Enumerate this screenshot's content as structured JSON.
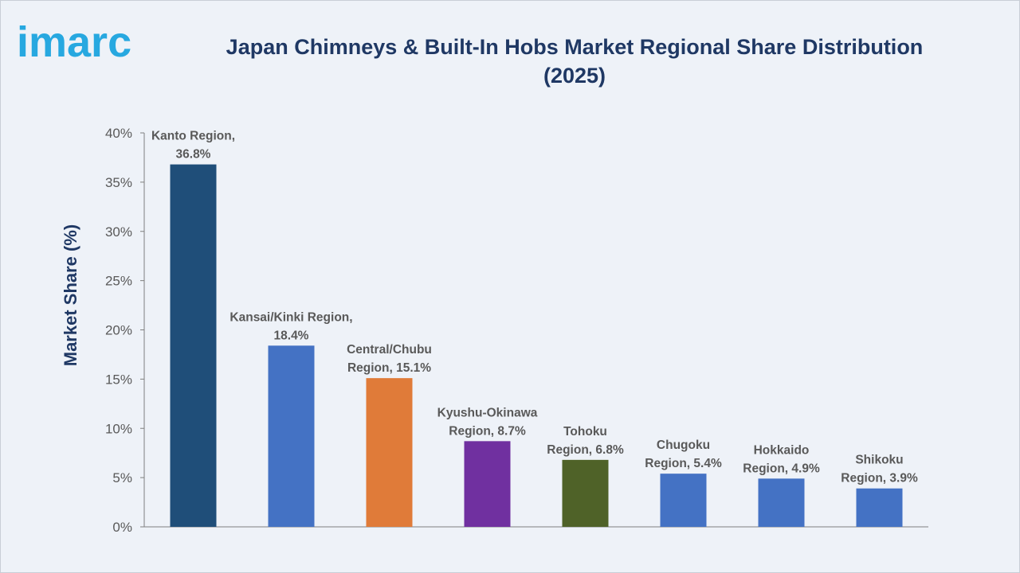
{
  "brand": {
    "logo_text": "imarc",
    "accent": "#27a8e0"
  },
  "header": {
    "title": "Japan Chimneys & Built-In Hobs Market Regional Share Distribution (2025)"
  },
  "chart_data": {
    "type": "bar",
    "title": "Japan Chimneys & Built-In Hobs Market Regional Share Distribution (2025)",
    "xlabel": "",
    "ylabel": "Market Share (%)",
    "ylim": [
      0,
      40
    ],
    "yticks": [
      0,
      5,
      10,
      15,
      20,
      25,
      30,
      35,
      40
    ],
    "ytick_labels": [
      "0%",
      "5%",
      "10%",
      "15%",
      "20%",
      "25%",
      "30%",
      "35%",
      "40%"
    ],
    "grid": false,
    "categories": [
      "Kanto Region",
      "Kansai/Kinki Region",
      "Central/Chubu Region",
      "Kyushu-Okinawa Region",
      "Tohoku Region",
      "Chugoku Region",
      "Hokkaido Region",
      "Shikoku Region"
    ],
    "values": [
      36.8,
      18.4,
      15.1,
      8.7,
      6.8,
      5.4,
      4.9,
      3.9
    ],
    "data_labels": [
      [
        "Kanto Region,",
        "36.8%"
      ],
      [
        "Kansai/Kinki Region,",
        "18.4%"
      ],
      [
        "Central/Chubu",
        "Region, 15.1%"
      ],
      [
        "Kyushu-Okinawa",
        "Region, 8.7%"
      ],
      [
        "Tohoku",
        "Region, 6.8%"
      ],
      [
        "Chugoku",
        "Region, 5.4%"
      ],
      [
        "Hokkaido",
        "Region, 4.9%"
      ],
      [
        "Shikoku",
        "Region, 3.9%"
      ]
    ],
    "colors": [
      "#1f4e79",
      "#4472c4",
      "#e07b39",
      "#7030a0",
      "#4f6228",
      "#4472c4",
      "#4472c4",
      "#4472c4"
    ]
  }
}
